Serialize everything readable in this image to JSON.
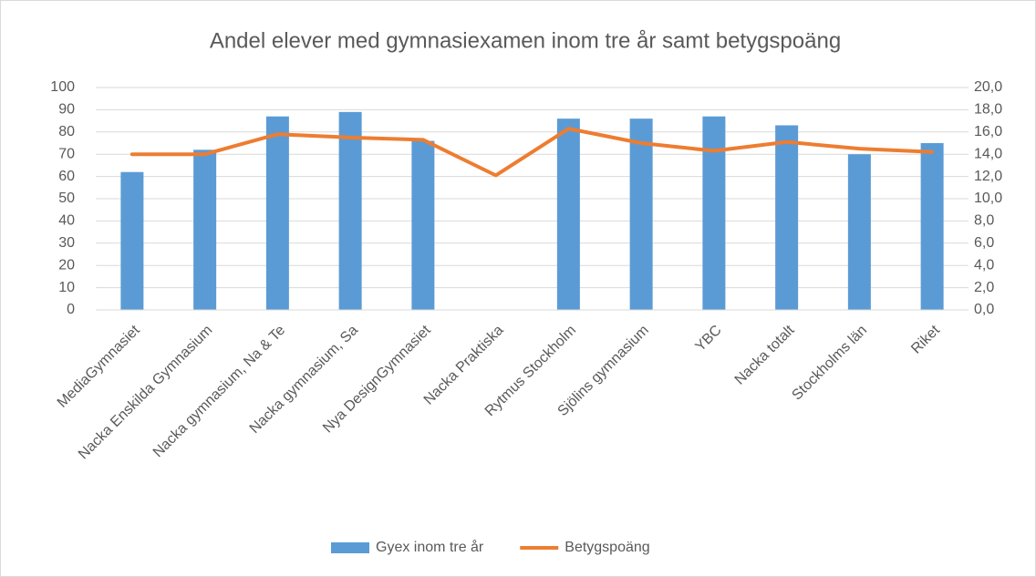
{
  "chart_data": {
    "type": "bar",
    "title": "Andel elever med gymnasiexamen inom tre år samt betygspoäng",
    "categories": [
      "MediaGymnasiet",
      "Nacka Enskilda Gymnasium",
      "Nacka gymnasium, Na & Te",
      "Nacka gymnasium, Sa",
      "Nya DesignGymnasiet",
      "Nacka Praktiska",
      "Rytmus Stockholm",
      "Sjölins gymnasium",
      "YBC",
      "Nacka totalt",
      "Stockholms län",
      "Riket"
    ],
    "series": [
      {
        "name": "Gyex inom tre år",
        "type": "bar",
        "color": "#5b9bd5",
        "values": [
          62,
          72,
          87,
          89,
          76,
          null,
          86,
          86,
          87,
          83,
          70,
          75
        ]
      },
      {
        "name": "Betygspoäng",
        "type": "line",
        "axis": "y2",
        "color": "#ed7d31",
        "values": [
          14.0,
          14.0,
          15.8,
          15.5,
          15.3,
          12.1,
          16.3,
          15.0,
          14.3,
          15.1,
          14.5,
          14.2
        ]
      }
    ],
    "ylim": [
      0,
      100
    ],
    "yticks": [
      0,
      10,
      20,
      30,
      40,
      50,
      60,
      70,
      80,
      90,
      100
    ],
    "y2lim": [
      0,
      20
    ],
    "y2ticks": [
      {
        "value": 0,
        "label": "0,0"
      },
      {
        "value": 2,
        "label": "2,0"
      },
      {
        "value": 4,
        "label": "4,0"
      },
      {
        "value": 6,
        "label": "6,0"
      },
      {
        "value": 8,
        "label": "8,0"
      },
      {
        "value": 10,
        "label": "10,0"
      },
      {
        "value": 12,
        "label": "12,0"
      },
      {
        "value": 14,
        "label": "14,0"
      },
      {
        "value": 16,
        "label": "16,0"
      },
      {
        "value": 18,
        "label": "18,0"
      },
      {
        "value": 20,
        "label": "20,0"
      }
    ],
    "grid": true,
    "legend": "bottom"
  }
}
